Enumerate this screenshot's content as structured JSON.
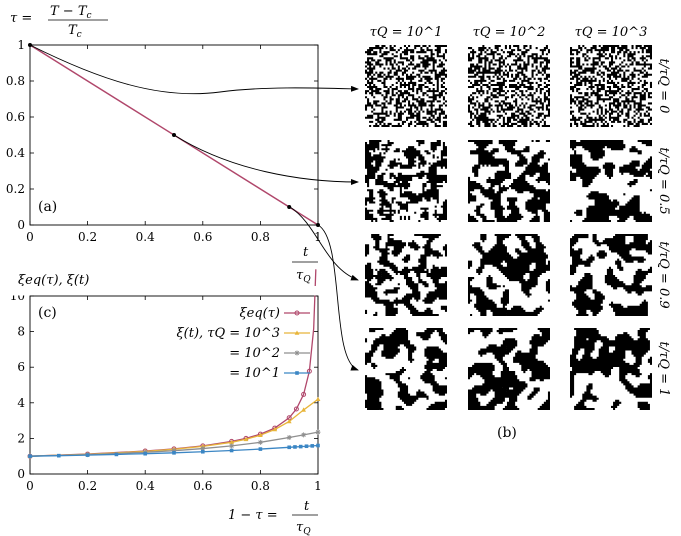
{
  "figure": {
    "panel_a_label": "(a)",
    "panel_b_label": "(b)",
    "panel_c_label": "(c)",
    "tau_definition": {
      "lhs": "τ =",
      "numerator": "T − T",
      "numerator_sub": "c",
      "denominator": "T",
      "denominator_sub": "c"
    },
    "fraction_t_tauQ": {
      "numerator": "t",
      "denominator": "τ",
      "denominator_sub": "Q"
    },
    "c_xlabel_prefix": "1 − τ =",
    "c_ylabel": "ξeq(τ), ξ(t)",
    "tauQ_labels": [
      "τQ = 10^1",
      "τQ = 10^2",
      "τQ = 10^3"
    ],
    "row_labels": [
      "t/τQ = 0",
      "t/τQ = 0.5",
      "t/τQ = 0.9",
      "t/τQ = 1"
    ]
  },
  "chart_data": [
    {
      "type": "line",
      "panel": "(a)",
      "xlim": [
        0,
        1
      ],
      "ylim": [
        0,
        1
      ],
      "x_ticks": [
        "0",
        "0.2",
        "0.4",
        "0.6",
        "0.8",
        "1"
      ],
      "y_ticks": [
        "0",
        "0.2",
        "0.4",
        "0.6",
        "0.8",
        "1"
      ],
      "series": [
        {
          "x": [
            0,
            1
          ],
          "y": [
            1,
            0
          ],
          "color": "#b0476b"
        }
      ],
      "marked_points": [
        {
          "x": 0,
          "y": 1
        },
        {
          "x": 0.5,
          "y": 0.5
        },
        {
          "x": 0.9,
          "y": 0.1
        },
        {
          "x": 1,
          "y": 0
        }
      ]
    },
    {
      "type": "line",
      "panel": "(c)",
      "xlim": [
        0,
        1
      ],
      "ylim": [
        0,
        10
      ],
      "x_ticks": [
        "0",
        "0.2",
        "0.4",
        "0.6",
        "0.8",
        "1"
      ],
      "y_ticks": [
        "0",
        "2",
        "4",
        "6",
        "8",
        "10"
      ],
      "legend_placement": "top-right",
      "series": [
        {
          "name": "ξeq(τ)",
          "color": "#b0476b",
          "x": [
            0,
            0.2,
            0.4,
            0.5,
            0.6,
            0.7,
            0.75,
            0.8,
            0.85,
            0.9,
            0.925,
            0.95,
            0.97
          ],
          "y": [
            1,
            1.12,
            1.29,
            1.41,
            1.58,
            1.83,
            2.0,
            2.24,
            2.58,
            3.16,
            3.65,
            4.47,
            5.77
          ]
        },
        {
          "name": "ξ(t), τQ = 10^3",
          "color": "#e8b53a",
          "x": [
            0,
            0.2,
            0.4,
            0.5,
            0.6,
            0.7,
            0.75,
            0.8,
            0.85,
            0.9,
            0.95,
            1.0
          ],
          "y": [
            1,
            1.11,
            1.27,
            1.39,
            1.55,
            1.78,
            1.95,
            2.18,
            2.5,
            2.95,
            3.6,
            4.2
          ]
        },
        {
          "name": "= 10^2",
          "color": "#8f8f8f",
          "x": [
            0,
            0.2,
            0.4,
            0.5,
            0.6,
            0.7,
            0.8,
            0.9,
            0.95,
            1.0
          ],
          "y": [
            1,
            1.09,
            1.22,
            1.31,
            1.43,
            1.58,
            1.78,
            2.05,
            2.2,
            2.35
          ]
        },
        {
          "name": "= 10^1",
          "color": "#3b86c4",
          "x": [
            0,
            0.1,
            0.2,
            0.3,
            0.4,
            0.5,
            0.6,
            0.7,
            0.8,
            0.9,
            0.92,
            0.94,
            0.96,
            0.98,
            1.0
          ],
          "y": [
            1,
            1.03,
            1.06,
            1.1,
            1.14,
            1.19,
            1.25,
            1.32,
            1.4,
            1.5,
            1.52,
            1.54,
            1.56,
            1.58,
            1.6
          ]
        }
      ]
    }
  ]
}
